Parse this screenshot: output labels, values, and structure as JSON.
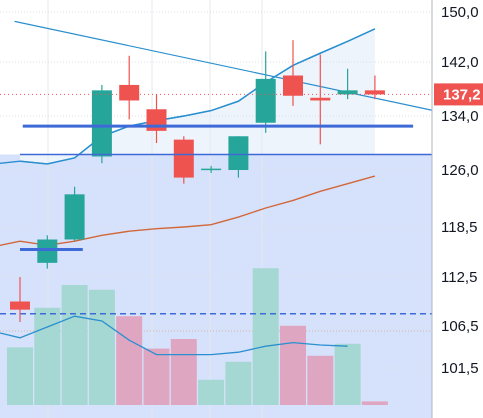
{
  "chart_data": {
    "type": "candlestick",
    "y_axis": {
      "ticks": [
        "150,0",
        "142,0",
        "134,0",
        "126,0",
        "118,5",
        "112,5",
        "106,5",
        "101,5"
      ],
      "range": [
        99.0,
        151.0
      ]
    },
    "last_price": "137,2",
    "colors": {
      "up": "#26a69a",
      "down": "#ef5350",
      "volume_up": "#a6d8d3",
      "volume_down": "#dfa6c2",
      "zone_fill": "#d6e1fb",
      "hline": "#3d6ad6",
      "blue_line": "#2a8fcf",
      "orange_line": "#d2683a",
      "volume_ma": "#2a8fcf"
    },
    "candles": [
      {
        "o": 109.5,
        "h": 112.5,
        "l": 107.0,
        "c": 108.5
      },
      {
        "o": 114.2,
        "h": 117.5,
        "l": 113.5,
        "c": 117.0
      },
      {
        "o": 117.0,
        "h": 123.8,
        "l": 116.8,
        "c": 122.8
      },
      {
        "o": 128.0,
        "h": 138.6,
        "l": 127.0,
        "c": 137.8
      },
      {
        "o": 138.6,
        "h": 143.0,
        "l": 133.5,
        "c": 136.3
      },
      {
        "o": 135.0,
        "h": 137.2,
        "l": 130.0,
        "c": 131.8
      },
      {
        "o": 130.5,
        "h": 131.0,
        "l": 124.2,
        "c": 125.0
      },
      {
        "o": 126.0,
        "h": 126.6,
        "l": 125.6,
        "c": 126.2
      },
      {
        "o": 126.0,
        "h": 131.0,
        "l": 125.0,
        "c": 131.0
      },
      {
        "o": 133.0,
        "h": 143.7,
        "l": 131.5,
        "c": 139.5
      },
      {
        "o": 140.0,
        "h": 145.5,
        "l": 135.5,
        "c": 137.0
      },
      {
        "o": 136.7,
        "h": 143.2,
        "l": 129.8,
        "c": 136.3
      },
      {
        "o": 137.2,
        "h": 141.0,
        "l": 136.5,
        "c": 137.8
      },
      {
        "o": 137.8,
        "h": 140.0,
        "l": 136.5,
        "c": 137.2
      }
    ],
    "volumes": [
      {
        "v": 48,
        "dir": "up"
      },
      {
        "v": 81,
        "dir": "up"
      },
      {
        "v": 100,
        "dir": "up"
      },
      {
        "v": 96,
        "dir": "up"
      },
      {
        "v": 74,
        "dir": "down"
      },
      {
        "v": 47,
        "dir": "down"
      },
      {
        "v": 55,
        "dir": "down"
      },
      {
        "v": 21,
        "dir": "up"
      },
      {
        "v": 36,
        "dir": "up"
      },
      {
        "v": 114,
        "dir": "up"
      },
      {
        "v": 66,
        "dir": "down"
      },
      {
        "v": 41,
        "dir": "down"
      },
      {
        "v": 51,
        "dir": "up"
      },
      {
        "v": 3,
        "dir": "down"
      }
    ],
    "volume_ma": [
      56,
      65,
      74,
      70,
      54,
      42,
      42,
      42,
      44,
      49,
      52,
      50,
      49
    ],
    "blue_curve": [
      127.3,
      126.9,
      127.8,
      131.0,
      132.5,
      133.3,
      134.0,
      134.8,
      136.2,
      139.0,
      141.5,
      143.4,
      145.3,
      147.3
    ],
    "orange_curve": [
      116.8,
      116.3,
      116.8,
      117.5,
      118.0,
      118.3,
      118.5,
      118.8,
      119.8,
      121.0,
      122.0,
      123.2,
      124.2,
      125.2
    ],
    "trend_line": {
      "from": [
        -0.2,
        148.5
      ],
      "to": [
        15.5,
        134.5
      ]
    },
    "horizontal_lines": [
      {
        "y": 132.5,
        "x_from": 0.1,
        "x_to": 14.4
      },
      {
        "y": 128.3,
        "x_from": 0.0,
        "x_to": 15.5
      },
      {
        "y": 115.8,
        "x_from": 0.0,
        "x_to": 2.3
      }
    ],
    "zone": {
      "y_top": 128.3,
      "x_to": 15.5
    },
    "dashed_line": {
      "y": 108.0
    },
    "dotted_line": {
      "y": 137.2
    }
  }
}
